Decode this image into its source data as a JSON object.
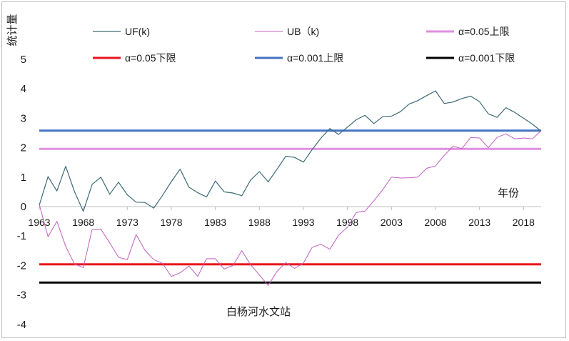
{
  "chart_data": {
    "type": "line",
    "ylabel": "统计量",
    "xlabel": "年份",
    "annotation": "白杨河水文站",
    "ylim": [
      -4,
      5
    ],
    "yticks": [
      -4,
      -3,
      -2,
      -1,
      0,
      1,
      2,
      3,
      4,
      5
    ],
    "ytick_labels": [
      "-4",
      "-3",
      "-2",
      "-1",
      "0",
      "1",
      "2",
      "3",
      "4",
      "5"
    ],
    "xlim": [
      1963,
      2020
    ],
    "xticks": [
      1963,
      1968,
      1973,
      1978,
      1983,
      1988,
      1993,
      1998,
      2003,
      2008,
      2013,
      2018
    ],
    "xtick_labels": [
      "1963",
      "1968",
      "1973",
      "1978",
      "1983",
      "1988",
      "1993",
      "1998",
      "2003",
      "2008",
      "2013",
      "2018"
    ],
    "years": [
      1963,
      1964,
      1965,
      1966,
      1967,
      1968,
      1969,
      1970,
      1971,
      1972,
      1973,
      1974,
      1975,
      1976,
      1977,
      1978,
      1979,
      1980,
      1981,
      1982,
      1983,
      1984,
      1985,
      1986,
      1987,
      1988,
      1989,
      1990,
      1991,
      1992,
      1993,
      1994,
      1995,
      1996,
      1997,
      1998,
      1999,
      2000,
      2001,
      2002,
      2003,
      2004,
      2005,
      2006,
      2007,
      2008,
      2009,
      2010,
      2011,
      2012,
      2013,
      2014,
      2015,
      2016,
      2017,
      2018,
      2019,
      2020
    ],
    "series": [
      {
        "name": "UF(k)",
        "color": "#3d6b73",
        "width": 1.2,
        "values": [
          0.05,
          1.02,
          0.53,
          1.37,
          0.51,
          -0.16,
          0.75,
          1.0,
          0.42,
          0.83,
          0.4,
          0.15,
          0.14,
          -0.05,
          0.38,
          0.85,
          1.27,
          0.66,
          0.47,
          0.33,
          0.87,
          0.5,
          0.46,
          0.37,
          0.9,
          1.19,
          0.84,
          1.27,
          1.71,
          1.67,
          1.51,
          1.94,
          2.33,
          2.65,
          2.45,
          2.7,
          2.95,
          3.1,
          2.82,
          3.05,
          3.07,
          3.22,
          3.48,
          3.6,
          3.77,
          3.93,
          3.5,
          3.55,
          3.67,
          3.75,
          3.56,
          3.15,
          3.03,
          3.36,
          3.2,
          3.0,
          2.8,
          2.56
        ]
      },
      {
        "name": "UB（k)",
        "color": "#c060c0",
        "width": 1.0,
        "values": [
          0.07,
          -1.02,
          -0.5,
          -1.35,
          -1.95,
          -2.07,
          -0.78,
          -0.77,
          -1.23,
          -1.72,
          -1.8,
          -0.95,
          -1.48,
          -1.8,
          -1.93,
          -2.37,
          -2.25,
          -2.02,
          -2.37,
          -1.77,
          -1.77,
          -2.12,
          -2.0,
          -1.5,
          -1.97,
          -2.32,
          -2.68,
          -2.2,
          -1.9,
          -2.1,
          -1.92,
          -1.38,
          -1.28,
          -1.45,
          -0.97,
          -0.7,
          -0.2,
          -0.15,
          0.2,
          0.57,
          1.0,
          0.97,
          0.98,
          1.0,
          1.3,
          1.38,
          1.74,
          2.05,
          1.97,
          2.35,
          2.33,
          2.0,
          2.35,
          2.47,
          2.3,
          2.33,
          2.3,
          2.58
        ]
      }
    ],
    "thresholds": [
      {
        "name": "α=0.05上限",
        "value": 1.96,
        "color": "#e08ee0",
        "width": 3
      },
      {
        "name": "α=0.05下限",
        "value": -1.96,
        "color": "#e8161b",
        "width": 3
      },
      {
        "name": "α=0.001上限",
        "value": 2.58,
        "color": "#4472c4",
        "width": 3
      },
      {
        "name": "α=0.001下限",
        "value": -2.58,
        "color": "#000000",
        "width": 3
      }
    ],
    "legend": [
      {
        "label": "UF(k)",
        "color": "#3d6b73",
        "width": 1.2
      },
      {
        "label": "UB（k)",
        "color": "#c060c0",
        "width": 1.0
      },
      {
        "label": "α=0.05上限",
        "color": "#e08ee0",
        "width": 3
      },
      {
        "label": "α=0.05下限",
        "color": "#e8161b",
        "width": 3
      },
      {
        "label": "α=0.001上限",
        "color": "#4472c4",
        "width": 3
      },
      {
        "label": "α=0.001下限",
        "color": "#000000",
        "width": 3
      }
    ],
    "legend_position": "top"
  }
}
